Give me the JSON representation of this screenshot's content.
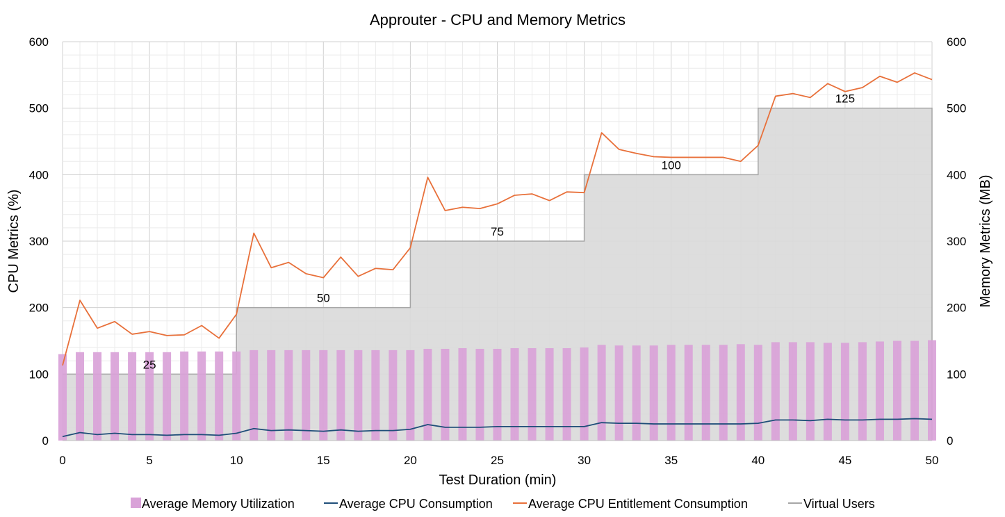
{
  "chart_data": {
    "type": "bar",
    "title": "Approuter - CPU and Memory Metrics",
    "xlabel": "Test Duration (min)",
    "ylabel": "CPU Metrics (%)",
    "y2label": "Memory Metrics (MB)",
    "xlim": [
      0,
      50
    ],
    "ylim": [
      0,
      600
    ],
    "y2lim": [
      0,
      600
    ],
    "x_ticks": [
      0,
      5,
      10,
      15,
      20,
      25,
      30,
      35,
      40,
      45,
      50
    ],
    "y_ticks": [
      0,
      100,
      200,
      300,
      400,
      500,
      600
    ],
    "y2_ticks": [
      0,
      100,
      200,
      300,
      400,
      500,
      600
    ],
    "grid": true,
    "legend_position": "bottom",
    "x": [
      0,
      1,
      2,
      3,
      4,
      5,
      6,
      7,
      8,
      9,
      10,
      11,
      12,
      13,
      14,
      15,
      16,
      17,
      18,
      19,
      20,
      21,
      22,
      23,
      24,
      25,
      26,
      27,
      28,
      29,
      30,
      31,
      32,
      33,
      34,
      35,
      36,
      37,
      38,
      39,
      40,
      41,
      42,
      43,
      44,
      45,
      46,
      47,
      48,
      49,
      50
    ],
    "series": [
      {
        "name": "Average Memory Utilization",
        "type": "bar",
        "axis": "right",
        "color": "#d9a2d8",
        "values": [
          130,
          133,
          133,
          133,
          133,
          133,
          133,
          134,
          134,
          134,
          134,
          136,
          136,
          136,
          136,
          136,
          136,
          136,
          136,
          136,
          136,
          138,
          138,
          139,
          138,
          138,
          139,
          139,
          139,
          139,
          140,
          144,
          143,
          143,
          143,
          144,
          144,
          144,
          144,
          145,
          144,
          148,
          148,
          148,
          147,
          147,
          148,
          149,
          150,
          150,
          151
        ]
      },
      {
        "name": "Average CPU Consumption",
        "type": "line",
        "axis": "left",
        "color": "#1f4e79",
        "values": [
          6,
          12,
          9,
          11,
          9,
          9,
          8,
          9,
          9,
          8,
          11,
          18,
          15,
          16,
          15,
          14,
          16,
          14,
          15,
          15,
          17,
          24,
          20,
          20,
          20,
          21,
          21,
          21,
          21,
          21,
          21,
          27,
          26,
          26,
          25,
          25,
          25,
          25,
          25,
          25,
          26,
          31,
          31,
          30,
          32,
          31,
          31,
          32,
          32,
          33,
          32
        ]
      },
      {
        "name": "Average CPU Entitlement Consumption",
        "type": "line",
        "axis": "left",
        "color": "#e8703a",
        "values": [
          113,
          211,
          169,
          179,
          160,
          164,
          158,
          159,
          173,
          154,
          190,
          312,
          260,
          268,
          251,
          245,
          276,
          247,
          259,
          257,
          290,
          396,
          346,
          351,
          349,
          356,
          369,
          371,
          361,
          374,
          373,
          463,
          438,
          432,
          427,
          426,
          426,
          426,
          426,
          420,
          444,
          518,
          522,
          516,
          537,
          525,
          531,
          548,
          539,
          553,
          543
        ]
      },
      {
        "name": "Virtual Users",
        "type": "area-step",
        "axis": "left",
        "color": "#a6a6a6",
        "steps": [
          {
            "x_start": 0,
            "x_end": 10,
            "value": 100,
            "label": "25"
          },
          {
            "x_start": 10,
            "x_end": 20,
            "value": 200,
            "label": "50"
          },
          {
            "x_start": 20,
            "x_end": 30,
            "value": 300,
            "label": "75"
          },
          {
            "x_start": 30,
            "x_end": 40,
            "value": 400,
            "label": "100"
          },
          {
            "x_start": 40,
            "x_end": 50,
            "value": 500,
            "label": "125"
          }
        ]
      }
    ]
  }
}
